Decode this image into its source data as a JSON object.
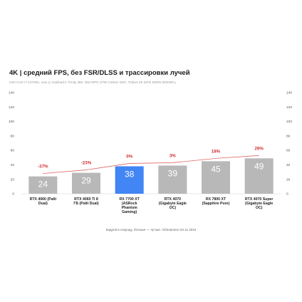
{
  "chart_data": {
    "type": "bar",
    "title": "4K | средний FPS, без FSR/DLSS и трассировки лучей",
    "subtitle": "Intel Core i7-14700K, Lian Li Galahad II Trinity 360, MSI MPG Z790 Carbon WiFi, Trident Z5 32ГБ DDR5 6000МГц",
    "footnote": "Кадров в секунду, больше — лучше. Обновлено 04.11.2024",
    "categories": [
      [
        "RTX 4060 (Palit",
        "Dual)"
      ],
      [
        "RTX 4060 Ti 8",
        "ГБ (Palit Dual)"
      ],
      [
        "RX 7700 XT",
        "(ASRock",
        "Phantom",
        "Gaming)"
      ],
      [
        "RTX 4070",
        "(Gigabyte Eagle",
        "OC)"
      ],
      [
        "RX 7800 XT",
        "(Sapphire Pure)"
      ],
      [
        "RTX 4070 Super",
        "(Gigabyte Eagle",
        "OC)"
      ]
    ],
    "values": [
      24,
      29,
      38,
      39,
      45,
      49
    ],
    "percent_labels": [
      "-37%",
      "-23%",
      "0%",
      "3%",
      "18%",
      "29%"
    ],
    "highlight_index": 2,
    "ylim": [
      0,
      140
    ],
    "yticks": [
      0,
      20,
      40,
      60,
      80,
      100,
      120,
      140
    ],
    "grid": false,
    "right_axis_mirrored": true,
    "colors": {
      "bar": "#b8b8b8",
      "bar_highlight": "#4285f4",
      "bar_label": "#ffffff",
      "line": "#e06666",
      "percent_label": "#cc3333",
      "axis_text": "#555555"
    }
  }
}
